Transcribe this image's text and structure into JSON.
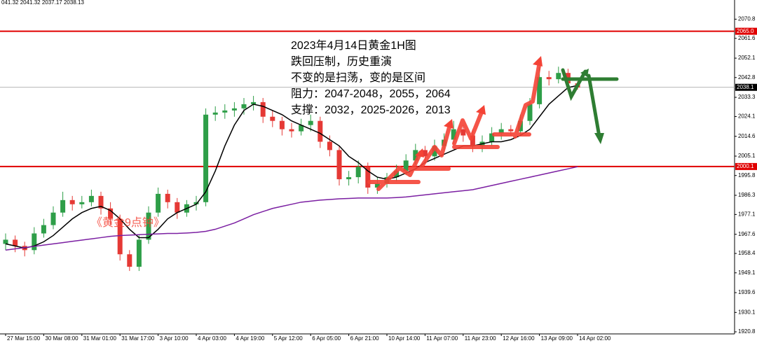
{
  "chart_data": {
    "type": "candlestick",
    "header": "041.32 2041.32 2037.17 2038.13",
    "annotations": [
      "2023年4月14日黄金1H图",
      "跌回压制，历史重演",
      "不变的是扫荡，变的是区间",
      "阻力：2047-2048，2055，2064",
      "支撑：2032，2025-2026，2013"
    ],
    "watermark": "《黄金9点钟》",
    "categories": [
      "27 Mar 15:00",
      null,
      null,
      null,
      "30 Mar 08:00",
      null,
      null,
      null,
      "31 Mar 01:00",
      null,
      null,
      null,
      "31 Mar 17:00",
      null,
      null,
      null,
      "3 Apr 10:00",
      null,
      null,
      null,
      "4 Apr 03:00",
      null,
      null,
      null,
      "4 Apr 19:00",
      null,
      null,
      null,
      "5 Apr 12:00",
      null,
      null,
      null,
      "6 Apr 05:00",
      null,
      null,
      null,
      "6 Apr 21:00",
      null,
      null,
      null,
      "10 Apr 14:00",
      null,
      null,
      null,
      "11 Apr 07:00",
      null,
      null,
      null,
      "11 Apr 23:00",
      null,
      null,
      null,
      "12 Apr 16:00",
      null,
      null,
      null,
      "13 Apr 09:00",
      null,
      null,
      null,
      "14 Apr 02:00"
    ],
    "open": [
      1963,
      1965,
      1962,
      1960,
      1968,
      1972,
      1978,
      1984,
      1982,
      1983,
      1986,
      1980,
      1975,
      1958,
      1952,
      1965,
      1978,
      1987,
      1983,
      1978,
      1982,
      1983,
      2025,
      2026,
      2027,
      2028,
      2030,
      2031,
      2024,
      2022,
      2018,
      2017,
      2020,
      2022,
      2012,
      2008,
      1994,
      1995,
      2000,
      1990,
      1992,
      1995,
      1998,
      2003,
      2008,
      2005,
      2010,
      2013,
      2018,
      2015,
      2010,
      2012,
      2016,
      2018,
      2017,
      2022,
      2030,
      2043,
      2042,
      2045,
      2040
    ],
    "high": [
      1968,
      1967,
      1964,
      1971,
      1975,
      1981,
      1988,
      1986,
      1986,
      1989,
      1988,
      1983,
      1977,
      1960,
      1967,
      1981,
      1990,
      1989,
      1985,
      1984,
      1986,
      2028,
      2029,
      2030,
      2031,
      2033,
      2034,
      2033,
      2027,
      2024,
      2021,
      2023,
      2025,
      2024,
      2015,
      2010,
      1998,
      2003,
      2002,
      1995,
      1997,
      2001,
      2006,
      2011,
      2010,
      2013,
      2016,
      2022,
      2020,
      2018,
      2015,
      2019,
      2021,
      2020,
      2025,
      2033,
      2048,
      2046,
      2048,
      2047,
      2041
    ],
    "low": [
      1960,
      1959,
      1957,
      1958,
      1966,
      1970,
      1976,
      1979,
      1980,
      1981,
      1977,
      1972,
      1955,
      1950,
      1950,
      1963,
      1976,
      1980,
      1975,
      1976,
      1979,
      1981,
      2022,
      2023,
      2024,
      2025,
      2027,
      2021,
      2019,
      2015,
      2014,
      2015,
      2017,
      2009,
      2005,
      1991,
      1991,
      1992,
      1987,
      1987,
      1990,
      1993,
      1996,
      2001,
      2002,
      2003,
      2008,
      2011,
      2012,
      2007,
      2007,
      2010,
      2013,
      2015,
      2015,
      2020,
      2028,
      2039,
      2040,
      2037,
      2037
    ],
    "close": [
      1965,
      1962,
      1960,
      1968,
      1972,
      1978,
      1984,
      1982,
      1983,
      1986,
      1980,
      1975,
      1958,
      1952,
      1965,
      1978,
      1987,
      1983,
      1978,
      1982,
      1983,
      2025,
      2026,
      2027,
      2028,
      2030,
      2031,
      2024,
      2022,
      2018,
      2017,
      2020,
      2022,
      2012,
      2008,
      1994,
      1995,
      2000,
      1990,
      1992,
      1995,
      1998,
      2003,
      2008,
      2005,
      2010,
      2013,
      2018,
      2015,
      2010,
      2012,
      2016,
      2018,
      2017,
      2022,
      2030,
      2043,
      2042,
      2045,
      2040,
      2038
    ],
    "up_color": "#2e9e48",
    "down_color": "#e53935",
    "series": [
      {
        "color": "#000000",
        "values": [
          1963,
          1962,
          1961,
          1962,
          1964,
          1967,
          1971,
          1975,
          1978,
          1980,
          1981,
          1979,
          1975,
          1970,
          1966,
          1966,
          1970,
          1975,
          1978,
          1980,
          1982,
          1988,
          1998,
          2010,
          2020,
          2027,
          2030,
          2029,
          2027,
          2025,
          2022,
          2020,
          2018,
          2016,
          2013,
          2010,
          2005,
          2002,
          1998,
          1995,
          1994,
          1995,
          1997,
          1999,
          2002,
          2004,
          2006,
          2008,
          2010,
          2010,
          2011,
          2012,
          2012,
          2013,
          2015,
          2018,
          2024,
          2030,
          2034,
          2038,
          2039
        ]
      },
      {
        "color": "#7b1fa2",
        "values": [
          1960,
          1960.6,
          1961.2,
          1961.8,
          1962.4,
          1963,
          1963.6,
          1964.2,
          1964.8,
          1965.4,
          1966,
          1966.6,
          1967,
          1967.2,
          1967.4,
          1967.6,
          1967.8,
          1968,
          1968,
          1968.2,
          1968.5,
          1969,
          1970,
          1971.5,
          1973,
          1975,
          1977,
          1978.5,
          1980,
          1981,
          1982,
          1983,
          1983.5,
          1984,
          1984.3,
          1984.6,
          1984.8,
          1985,
          1985,
          1985,
          1985,
          1985.2,
          1985.5,
          1986,
          1986.5,
          1987,
          1987.5,
          1988,
          1988.5,
          1989,
          1990,
          1991,
          1992,
          1993,
          1994,
          1995,
          1996,
          1997,
          1998,
          1999,
          2000
        ]
      }
    ],
    "hlines": [
      {
        "value": {
          "value": 2065.0,
          "label": "2065.0"
        },
        "color": "#e00000"
      },
      {
        "value": 2000.1,
        "color": "#e00000"
      },
      {
        "value": 2038.1,
        "color": "#9e9e9e"
      }
    ],
    "ylim": [
      1919.8,
      2080.0
    ],
    "yticks": [
      2070.8,
      2061.6,
      2052.1,
      2042.8,
      2033.3,
      2024.1,
      2014.6,
      2005.1,
      1995.8,
      1986.3,
      1977.1,
      1967.6,
      1958.4,
      1949.1,
      1939.6,
      1930.1,
      1920.8
    ]
  }
}
